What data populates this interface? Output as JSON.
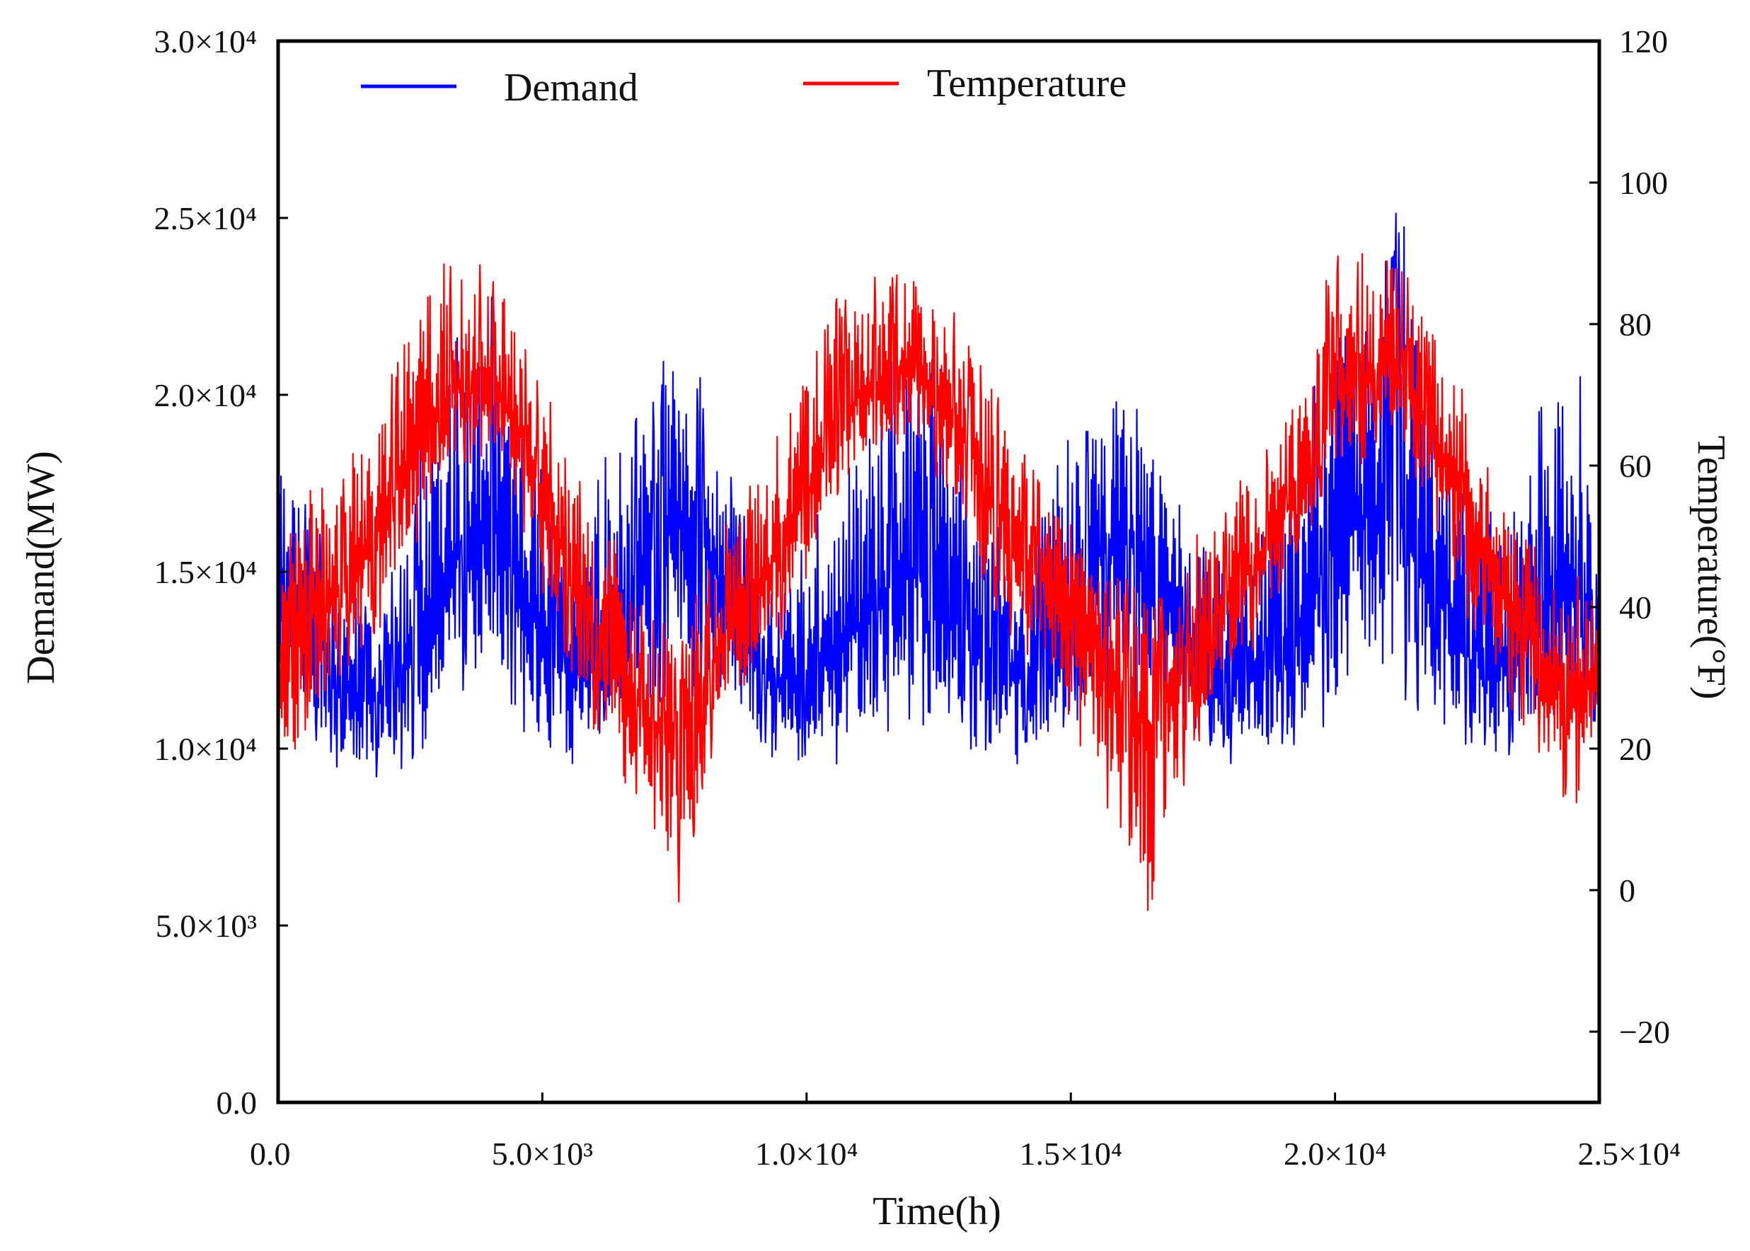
{
  "chart_data": {
    "type": "line",
    "title": "",
    "xlabel": "Time(h)",
    "ylabel_left": "Demand(MW)",
    "ylabel_right": "Temperature(°F)",
    "xlim": [
      0,
      25000
    ],
    "ylim_left": [
      0,
      30000
    ],
    "ylim_right": [
      -30,
      120
    ],
    "x_ticks": [
      {
        "value": 0,
        "label": "0.0"
      },
      {
        "value": 5000,
        "label": "5.0×10³"
      },
      {
        "value": 10000,
        "label": "1.0×10⁴"
      },
      {
        "value": 15000,
        "label": "1.5×10⁴"
      },
      {
        "value": 20000,
        "label": "2.0×10⁴"
      },
      {
        "value": 25000,
        "label": "2.5×10⁴"
      }
    ],
    "y_left_ticks": [
      {
        "value": 0,
        "label": "0.0"
      },
      {
        "value": 5000,
        "label": "5.0×10³"
      },
      {
        "value": 10000,
        "label": "1.0×10⁴"
      },
      {
        "value": 15000,
        "label": "1.5×10⁴"
      },
      {
        "value": 20000,
        "label": "2.0×10⁴"
      },
      {
        "value": 25000,
        "label": "2.5×10⁴"
      },
      {
        "value": 30000,
        "label": "3.0×10⁴"
      }
    ],
    "y_right_ticks": [
      {
        "value": -20,
        "label": "−20"
      },
      {
        "value": 0,
        "label": "0"
      },
      {
        "value": 20,
        "label": "20"
      },
      {
        "value": 40,
        "label": "40"
      },
      {
        "value": 60,
        "label": "60"
      },
      {
        "value": 80,
        "label": "80"
      },
      {
        "value": 100,
        "label": "100"
      },
      {
        "value": 120,
        "label": "120"
      }
    ],
    "grid": false,
    "legend_position": "top",
    "series": [
      {
        "name": "Demand",
        "axis": "left",
        "color": "#0000ff",
        "x": [
          0,
          500,
          1000,
          1500,
          2000,
          2500,
          3000,
          3500,
          4000,
          4500,
          5000,
          5500,
          6000,
          6500,
          7000,
          7500,
          8000,
          8500,
          9000,
          9500,
          10000,
          10500,
          11000,
          11500,
          12000,
          12500,
          13000,
          13500,
          14000,
          14500,
          15000,
          15500,
          16000,
          16500,
          17000,
          17500,
          18000,
          18500,
          19000,
          19500,
          20000,
          20500,
          21000,
          21500,
          22000,
          22500,
          23000,
          23500,
          24000,
          24500,
          25000
        ],
        "y_center": [
          14500,
          13500,
          12500,
          11500,
          11500,
          12500,
          14500,
          16000,
          16500,
          15000,
          13000,
          12000,
          12500,
          14000,
          15500,
          16500,
          16000,
          14000,
          12500,
          12000,
          12000,
          12500,
          13500,
          14500,
          15000,
          14500,
          13500,
          12500,
          12000,
          12500,
          14000,
          15500,
          16000,
          15000,
          13500,
          12500,
          12000,
          12000,
          12500,
          14000,
          16000,
          16500,
          17000,
          16000,
          14500,
          13000,
          12500,
          13000,
          14000,
          14500,
          14000
        ],
        "y_low": [
          11500,
          10500,
          9500,
          9000,
          9000,
          9500,
          10500,
          11500,
          11500,
          10500,
          10000,
          9500,
          10000,
          10500,
          11000,
          11500,
          11000,
          10500,
          10000,
          9500,
          9500,
          9500,
          10000,
          10500,
          10500,
          10500,
          10000,
          9500,
          9500,
          10000,
          10500,
          11000,
          11500,
          11000,
          10500,
          10000,
          9500,
          9500,
          9500,
          10000,
          11000,
          11500,
          11500,
          11000,
          10500,
          10000,
          9500,
          10000,
          10500,
          10500,
          10500
        ],
        "y_high": [
          20000,
          17500,
          15500,
          14500,
          14500,
          16500,
          23000,
          22000,
          23500,
          21000,
          18000,
          16000,
          17500,
          19500,
          20500,
          22500,
          20500,
          18000,
          16000,
          15500,
          16000,
          17500,
          20000,
          21500,
          23000,
          21000,
          18500,
          16500,
          16000,
          17000,
          19000,
          20500,
          21500,
          19500,
          18000,
          16500,
          16000,
          16000,
          17500,
          19500,
          23500,
          23500,
          26000,
          24000,
          20000,
          17500,
          17000,
          18500,
          20500,
          21000,
          19500
        ]
      },
      {
        "name": "Temperature",
        "axis": "right",
        "color": "#ff0000",
        "x": [
          0,
          500,
          1000,
          1500,
          2000,
          2500,
          3000,
          3500,
          4000,
          4500,
          5000,
          5500,
          6000,
          6500,
          7000,
          7500,
          8000,
          8500,
          9000,
          9500,
          10000,
          10500,
          11000,
          11500,
          12000,
          12500,
          13000,
          13500,
          14000,
          14500,
          15000,
          15500,
          16000,
          16500,
          17000,
          17500,
          18000,
          18500,
          19000,
          19500,
          20000,
          20500,
          21000,
          21500,
          22000,
          22500,
          23000,
          23500,
          24000,
          24500,
          25000
        ],
        "y_center": [
          30,
          38,
          42,
          46,
          52,
          60,
          68,
          72,
          72,
          66,
          56,
          46,
          38,
          32,
          24,
          20,
          28,
          36,
          42,
          48,
          56,
          64,
          70,
          72,
          74,
          70,
          64,
          56,
          48,
          44,
          40,
          34,
          28,
          22,
          30,
          36,
          42,
          46,
          52,
          62,
          70,
          72,
          74,
          70,
          62,
          54,
          44,
          38,
          32,
          28,
          30
        ],
        "y_low": [
          5,
          20,
          26,
          32,
          38,
          46,
          56,
          60,
          60,
          52,
          40,
          30,
          22,
          16,
          8,
          -5,
          10,
          22,
          28,
          34,
          42,
          52,
          58,
          60,
          62,
          58,
          50,
          40,
          34,
          30,
          24,
          14,
          5,
          -4,
          12,
          22,
          30,
          34,
          40,
          50,
          58,
          60,
          62,
          58,
          48,
          38,
          28,
          22,
          16,
          10,
          20
        ],
        "y_high": [
          48,
          56,
          60,
          64,
          70,
          80,
          90,
          88,
          90,
          82,
          72,
          62,
          54,
          48,
          40,
          36,
          44,
          52,
          58,
          66,
          76,
          84,
          86,
          88,
          86,
          86,
          80,
          72,
          64,
          58,
          56,
          50,
          46,
          40,
          46,
          52,
          58,
          62,
          68,
          80,
          90,
          92,
          90,
          86,
          78,
          70,
          60,
          54,
          48,
          44,
          46
        ]
      }
    ]
  }
}
